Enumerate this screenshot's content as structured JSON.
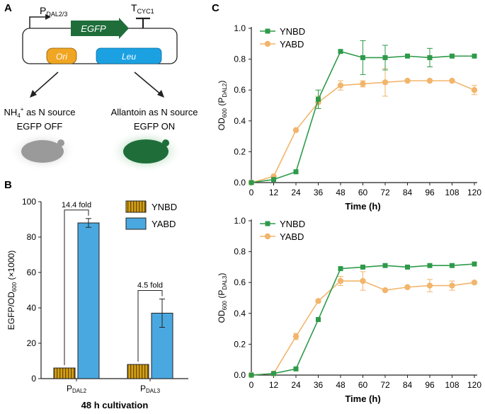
{
  "panel_a": {
    "label": "A",
    "promoter": "P",
    "promoter_sub": "DAL2/3",
    "terminator": "T",
    "terminator_sub": "CYC1",
    "gene": "EGFP",
    "ori": "Ori",
    "marker": "Leu",
    "left_condition_main": "NH",
    "left_condition_sup": "4",
    "left_condition_charge": "+",
    "left_condition_rest": " as N source",
    "left_state": "EGFP OFF",
    "right_condition": "Allantoin as N source",
    "right_state": "EGFP ON"
  },
  "colors": {
    "ynbd_bar": "#d4a017",
    "yabd_bar": "#4aa8e0",
    "ynbd_line": "#2e9a4a",
    "yabd_line": "#f2b56b",
    "egfp": "#1f6e3a",
    "ori": "#f0a623",
    "leu": "#1ba1e2"
  },
  "chart_data": [
    {
      "panel": "B",
      "type": "bar",
      "categories": [
        "P",
        "P"
      ],
      "category_subs": [
        "DAL2",
        "DAL3"
      ],
      "series": [
        {
          "name": "YNBD",
          "values": [
            6,
            8
          ],
          "errors": [
            0,
            0
          ]
        },
        {
          "name": "YABD",
          "values": [
            88,
            37
          ],
          "errors": [
            2.5,
            8
          ]
        }
      ],
      "annotations": [
        "14.4 fold",
        "4.5 fold"
      ],
      "ylabel_main": "EGFP/OD",
      "ylabel_sub": "600",
      "ylabel_tail": " (×1000)",
      "xlabel": "48 h cultivation",
      "ylim": [
        0,
        100
      ],
      "yticks": [
        "0",
        "20",
        "40",
        "60",
        "80",
        "100"
      ]
    },
    {
      "panel": "C",
      "type": "line",
      "x": [
        0,
        12,
        24,
        36,
        48,
        60,
        72,
        84,
        96,
        108,
        120
      ],
      "series": [
        {
          "name": "YNBD",
          "values": [
            0.0,
            0.02,
            0.07,
            0.54,
            0.85,
            0.81,
            0.81,
            0.82,
            0.81,
            0.82,
            0.82
          ],
          "errors": [
            0,
            0,
            0,
            0.06,
            0,
            0.11,
            0.08,
            0,
            0.06,
            0,
            0
          ]
        },
        {
          "name": "YABD",
          "values": [
            0.0,
            0.04,
            0.34,
            0.52,
            0.63,
            0.64,
            0.65,
            0.66,
            0.66,
            0.66,
            0.6
          ],
          "errors": [
            0,
            0,
            0,
            0.04,
            0.03,
            0.02,
            0.09,
            0,
            0,
            0,
            0.03
          ]
        }
      ],
      "ylabel_main": "OD",
      "ylabel_sub1": "600",
      "ylabel_mid": " (P",
      "ylabel_sub2": "DAL2",
      "ylabel_tail": ")",
      "xlabel": "Time (h)",
      "ylim": [
        0,
        1.0
      ],
      "xlim": [
        0,
        120
      ],
      "yticks": [
        "0.0",
        "0.2",
        "0.4",
        "0.6",
        "0.8",
        "1.0"
      ],
      "xticks": [
        "0",
        "12",
        "24",
        "36",
        "48",
        "60",
        "72",
        "84",
        "96",
        "108",
        "120"
      ]
    },
    {
      "panel": "C",
      "type": "line",
      "x": [
        0,
        12,
        24,
        36,
        48,
        60,
        72,
        84,
        96,
        108,
        120
      ],
      "series": [
        {
          "name": "YNBD",
          "values": [
            0.0,
            0.01,
            0.04,
            0.36,
            0.69,
            0.7,
            0.71,
            0.7,
            0.71,
            0.71,
            0.72
          ],
          "errors": [
            0,
            0,
            0,
            0,
            0,
            0,
            0,
            0,
            0,
            0,
            0
          ]
        },
        {
          "name": "YABD",
          "values": [
            0.0,
            0.01,
            0.25,
            0.48,
            0.61,
            0.61,
            0.55,
            0.57,
            0.58,
            0.58,
            0.6
          ],
          "errors": [
            0,
            0,
            0.02,
            0,
            0.03,
            0.06,
            0,
            0,
            0.04,
            0.03,
            0
          ]
        }
      ],
      "ylabel_main": "OD",
      "ylabel_sub1": "600",
      "ylabel_mid": " (P",
      "ylabel_sub2": "DAL3",
      "ylabel_tail": ")",
      "xlabel": "Time (h)",
      "ylim": [
        0,
        1.0
      ],
      "xlim": [
        0,
        120
      ],
      "yticks": [
        "0.0",
        "0.2",
        "0.4",
        "0.6",
        "0.8",
        "1.0"
      ],
      "xticks": [
        "0",
        "12",
        "24",
        "36",
        "48",
        "60",
        "72",
        "84",
        "96",
        "108",
        "120"
      ]
    }
  ],
  "panel_labels": {
    "b": "B",
    "c": "C"
  }
}
